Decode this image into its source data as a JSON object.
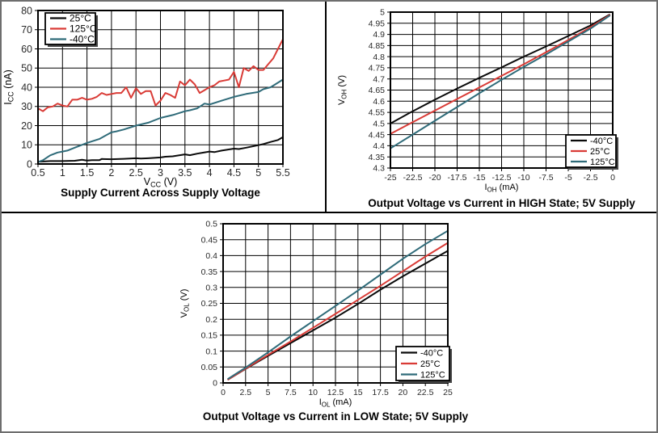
{
  "figure": {
    "background": "#ffffff",
    "outer_border_color": "#6e6e6e",
    "divider_color": "#000000",
    "grid_color": "#000000",
    "tick_text_color": "#2a2a2a",
    "legend_shadow_color": "#474747"
  },
  "chart_data": [
    {
      "type": "line",
      "title": "Supply Current Across Supply Voltage",
      "xlabel": {
        "pre": "V",
        "sub": "CC",
        "post": " (V)"
      },
      "ylabel": {
        "pre": "I",
        "sub": "CC",
        "post": " (nA)"
      },
      "xlim": [
        0.5,
        5.5
      ],
      "ylim": [
        0,
        80
      ],
      "xticks": [
        0.5,
        1,
        1.5,
        2,
        2.5,
        3,
        3.5,
        4,
        4.5,
        5,
        5.5
      ],
      "xtick_labels": [
        "0.5",
        "1",
        "1.5",
        "2",
        "2.5",
        "3",
        "3.5",
        "4",
        "4.5",
        "5",
        "5.5"
      ],
      "yticks": [
        0,
        10,
        20,
        30,
        40,
        50,
        60,
        70,
        80
      ],
      "ytick_labels": [
        "0",
        "10",
        "20",
        "30",
        "40",
        "50",
        "60",
        "70",
        "80"
      ],
      "grid": true,
      "legend_position": "top-left",
      "series": [
        {
          "name": "25°C",
          "color": "#0a0a0a",
          "x": [
            0.5,
            0.75,
            1.0,
            1.25,
            1.4,
            1.5,
            1.6,
            1.75,
            1.8,
            2.0,
            2.25,
            2.5,
            2.6,
            2.75,
            3.0,
            3.1,
            3.25,
            3.5,
            3.6,
            3.75,
            4.0,
            4.1,
            4.25,
            4.5,
            4.6,
            4.75,
            5.0,
            5.1,
            5.25,
            5.4,
            5.5
          ],
          "y": [
            1.2,
            1.5,
            1.5,
            1.7,
            2.2,
            1.8,
            2.0,
            2.0,
            2.6,
            2.5,
            2.7,
            3.0,
            2.8,
            3.0,
            3.4,
            3.8,
            4.0,
            5.0,
            4.6,
            5.4,
            6.5,
            6.2,
            7.0,
            8.0,
            7.8,
            8.5,
            9.8,
            10.4,
            11.5,
            12.5,
            14.0
          ]
        },
        {
          "name": "125°C",
          "color": "#d93b36",
          "x": [
            0.5,
            0.6,
            0.7,
            0.8,
            0.9,
            1.0,
            1.1,
            1.2,
            1.3,
            1.4,
            1.5,
            1.6,
            1.7,
            1.8,
            1.9,
            2.0,
            2.1,
            2.2,
            2.3,
            2.4,
            2.5,
            2.6,
            2.7,
            2.8,
            2.9,
            3.0,
            3.1,
            3.2,
            3.3,
            3.4,
            3.5,
            3.6,
            3.7,
            3.8,
            3.9,
            4.0,
            4.1,
            4.2,
            4.3,
            4.4,
            4.5,
            4.6,
            4.7,
            4.8,
            4.9,
            5.0,
            5.1,
            5.2,
            5.3,
            5.4,
            5.5
          ],
          "y": [
            29,
            27.5,
            29.5,
            30,
            31.5,
            30.5,
            30,
            33.5,
            33.5,
            34.5,
            33.5,
            34,
            35,
            37,
            36,
            36.5,
            37,
            37,
            40,
            34.5,
            39.5,
            36.5,
            38,
            38,
            30.5,
            33,
            37,
            36,
            34.5,
            43,
            41,
            44,
            41.5,
            37,
            38.5,
            40,
            41,
            43,
            43.5,
            44,
            48,
            40,
            50,
            48.5,
            51,
            49,
            49,
            52,
            55,
            60,
            65
          ]
        },
        {
          "name": "-40°C",
          "color": "#2f6b79",
          "x": [
            0.5,
            0.6,
            0.75,
            0.9,
            1.0,
            1.1,
            1.25,
            1.5,
            1.75,
            2.0,
            2.1,
            2.25,
            2.5,
            2.75,
            3.0,
            3.25,
            3.5,
            3.6,
            3.75,
            3.9,
            4.0,
            4.25,
            4.5,
            4.75,
            5.0,
            5.1,
            5.25,
            5.5
          ],
          "y": [
            1,
            2,
            4.5,
            6,
            6.5,
            7,
            8.5,
            11,
            13,
            16.5,
            17,
            18,
            20,
            21.5,
            24,
            25.5,
            27.5,
            28,
            29,
            31.5,
            31,
            33,
            35,
            36.5,
            37.5,
            39,
            40,
            44
          ]
        }
      ]
    },
    {
      "type": "line",
      "title": "Output Voltage vs Current in HIGH State; 5V Supply",
      "xlabel": {
        "pre": "I",
        "sub": "OH",
        "post": " (mA)"
      },
      "ylabel": {
        "pre": "V",
        "sub": "OH",
        "post": " (V)"
      },
      "xlim": [
        -25,
        0
      ],
      "ylim": [
        4.3,
        5
      ],
      "xticks": [
        -25,
        -22.5,
        -20,
        -17.5,
        -15,
        -12.5,
        -10,
        -7.5,
        -5,
        -2.5,
        0
      ],
      "xtick_labels": [
        "-25",
        "-22.5",
        "-20",
        "-17.5",
        "-15",
        "-12.5",
        "-10",
        "-7.5",
        "-5",
        "-2.5",
        "0"
      ],
      "yticks": [
        4.3,
        4.35,
        4.4,
        4.45,
        4.5,
        4.55,
        4.6,
        4.65,
        4.7,
        4.75,
        4.8,
        4.85,
        4.9,
        4.95,
        5
      ],
      "ytick_labels": [
        "4.3",
        "4.35",
        "4.4",
        "4.45",
        "4.5",
        "4.55",
        "4.6",
        "4.65",
        "4.7",
        "4.75",
        "4.8",
        "4.85",
        "4.9",
        "4.95",
        "5"
      ],
      "grid": true,
      "legend_position": "bottom-right",
      "series": [
        {
          "name": "-40°C",
          "color": "#0a0a0a",
          "x": [
            -25,
            -22.5,
            -20,
            -17.5,
            -15,
            -12.5,
            -10,
            -7.5,
            -5,
            -2.5,
            -0.3
          ],
          "y": [
            4.5,
            4.555,
            4.607,
            4.657,
            4.705,
            4.752,
            4.8,
            4.846,
            4.893,
            4.94,
            4.99
          ]
        },
        {
          "name": "25°C",
          "color": "#d93b36",
          "x": [
            -25,
            -22.5,
            -20,
            -17.5,
            -15,
            -12.5,
            -10,
            -7.5,
            -5,
            -2.5,
            -0.3
          ],
          "y": [
            4.453,
            4.506,
            4.558,
            4.61,
            4.662,
            4.714,
            4.766,
            4.82,
            4.875,
            4.932,
            4.988
          ]
        },
        {
          "name": "125°C",
          "color": "#2f6b79",
          "x": [
            -25,
            -22.5,
            -20,
            -17.5,
            -15,
            -12.5,
            -10,
            -7.5,
            -5,
            -2.5,
            -0.3
          ],
          "y": [
            4.388,
            4.45,
            4.512,
            4.574,
            4.636,
            4.696,
            4.754,
            4.81,
            4.868,
            4.926,
            4.985
          ]
        }
      ]
    },
    {
      "type": "line",
      "title": "Output Voltage vs Current in LOW State; 5V Supply",
      "xlabel": {
        "pre": "I",
        "sub": "OL",
        "post": " (mA)"
      },
      "ylabel": {
        "pre": "V",
        "sub": "OL",
        "post": " (V)"
      },
      "xlim": [
        0,
        25
      ],
      "ylim": [
        0,
        0.5
      ],
      "xticks": [
        0,
        2.5,
        5,
        7.5,
        10,
        12.5,
        15,
        17.5,
        20,
        22.5,
        25
      ],
      "xtick_labels": [
        "0",
        "2.5",
        "5",
        "7.5",
        "10",
        "12.5",
        "15",
        "17.5",
        "20",
        "22.5",
        "25"
      ],
      "yticks": [
        0,
        0.05,
        0.1,
        0.15,
        0.2,
        0.25,
        0.3,
        0.35,
        0.4,
        0.45,
        0.5
      ],
      "ytick_labels": [
        "0",
        "0.05",
        "0.1",
        "0.15",
        "0.2",
        "0.25",
        "0.3",
        "0.35",
        "0.4",
        "0.45",
        "0.5"
      ],
      "grid": true,
      "legend_position": "bottom-right",
      "series": [
        {
          "name": "-40°C",
          "color": "#0a0a0a",
          "x": [
            0.5,
            2.5,
            5,
            7.5,
            10,
            12.5,
            15,
            17.5,
            20,
            22.5,
            25
          ],
          "y": [
            0.01,
            0.044,
            0.085,
            0.125,
            0.165,
            0.205,
            0.248,
            0.293,
            0.335,
            0.375,
            0.415
          ]
        },
        {
          "name": "25°C",
          "color": "#d93b36",
          "x": [
            0.5,
            2.5,
            5,
            7.5,
            10,
            12.5,
            15,
            17.5,
            20,
            22.5,
            25
          ],
          "y": [
            0.01,
            0.045,
            0.088,
            0.13,
            0.173,
            0.217,
            0.261,
            0.305,
            0.351,
            0.397,
            0.44
          ]
        },
        {
          "name": "125°C",
          "color": "#2f6b79",
          "x": [
            0.5,
            2.5,
            5,
            7.5,
            10,
            12.5,
            15,
            17.5,
            20,
            22.5,
            25
          ],
          "y": [
            0.012,
            0.048,
            0.096,
            0.146,
            0.194,
            0.242,
            0.29,
            0.34,
            0.39,
            0.436,
            0.478
          ]
        }
      ]
    }
  ]
}
